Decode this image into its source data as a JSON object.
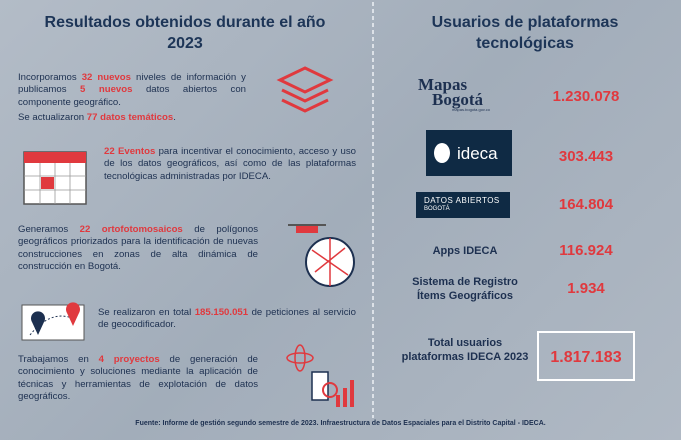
{
  "left": {
    "title": "Resultados obtenidos durante el año 2023",
    "items": [
      {
        "paragraphs": [
          [
            {
              "text": "Incorporamos ",
              "em": false
            },
            {
              "text": "32 nuevos",
              "em": true
            },
            {
              "text": " niveles de información y publicamos ",
              "em": false
            },
            {
              "text": "5 nuevos",
              "em": true
            },
            {
              "text": " datos abiertos con componente geográfico.",
              "em": false
            }
          ],
          [
            {
              "text": "Se actualizaron ",
              "em": false
            },
            {
              "text": "77 datos temáticos",
              "em": true
            },
            {
              "text": ".",
              "em": false
            }
          ]
        ]
      },
      {
        "paragraphs": [
          [
            {
              "text": "22 Eventos",
              "em": true
            },
            {
              "text": " para incentivar el conocimiento, acceso y uso de los datos geográficos, así como de las plataformas tecnológicas administradas por IDECA.",
              "em": false
            }
          ]
        ]
      },
      {
        "paragraphs": [
          [
            {
              "text": "Generamos ",
              "em": false
            },
            {
              "text": "22 ortofotomosaicos",
              "em": true
            },
            {
              "text": " de polígonos geográficos priorizados para la identificación de nuevas construcciones en zonas de alta dinámica de construcción en Bogotá.",
              "em": false
            }
          ]
        ]
      },
      {
        "paragraphs": [
          [
            {
              "text": "Se realizaron en total ",
              "em": false
            },
            {
              "text": "185.150.051",
              "em": true
            },
            {
              "text": " de peticiones al servicio de geocodificador.",
              "em": false
            }
          ]
        ]
      },
      {
        "paragraphs": [
          [
            {
              "text": "Trabajamos en ",
              "em": false
            },
            {
              "text": "4 proyectos",
              "em": true
            },
            {
              "text": " de generación de conocimiento y soluciones mediante la aplicación de técnicas y herramientas de explotación de datos geográficos.",
              "em": false
            }
          ]
        ]
      }
    ]
  },
  "right": {
    "title": "Usuarios de plataformas tecnológicas",
    "rows": [
      {
        "logo": [
          "Mapas",
          "Bogotá",
          "mapas.bogota.gov.co"
        ],
        "value": "1.230.078"
      },
      {
        "logo": [
          "ideca"
        ],
        "value": "303.443"
      },
      {
        "logo": [
          "DATOS ABIERTOS",
          "BOGOTÁ"
        ],
        "value": "164.804"
      },
      {
        "label": "Apps IDECA",
        "value": "116.924"
      },
      {
        "label": "Sistema de Registro Ítems Geográficos",
        "value": "1.934"
      },
      {
        "label": "Total usuarios plataformas IDECA 2023",
        "value": "1.817.183",
        "total": true
      }
    ]
  },
  "footer": "Fuente: Informe de gestión segundo semestre de 2023. Infraestructura de Datos Espaciales para el Distrito Capital - IDECA."
}
